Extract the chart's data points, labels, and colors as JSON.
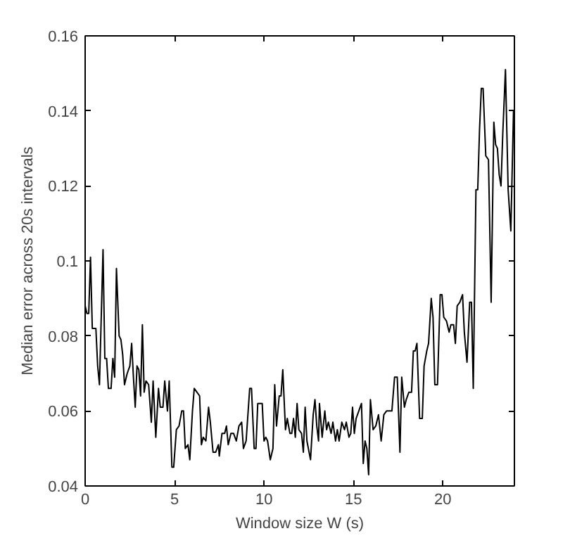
{
  "chart_data": {
    "type": "line",
    "xlabel": "Window size W (s)",
    "ylabel": "Median error across 20s intervals",
    "xlim": [
      0,
      24
    ],
    "ylim": [
      0.04,
      0.16
    ],
    "xticks": [
      0,
      5,
      10,
      15,
      20
    ],
    "yticks": [
      {
        "value": 0.04,
        "label": "0.04"
      },
      {
        "value": 0.06,
        "label": "0.06"
      },
      {
        "value": 0.08,
        "label": "0.08"
      },
      {
        "value": 0.1,
        "label": "0.1"
      },
      {
        "value": 0.12,
        "label": "0.12"
      },
      {
        "value": 0.14,
        "label": "0.14"
      },
      {
        "value": 0.16,
        "label": "0.16"
      }
    ],
    "grid": false,
    "marker": "none",
    "line_style": "solid",
    "series": [
      {
        "color": "#000000",
        "x": [
          0,
          0.1,
          0.2,
          0.3,
          0.4,
          0.6,
          0.7,
          0.8,
          1.0,
          1.1,
          1.2,
          1.3,
          1.45,
          1.55,
          1.65,
          1.75,
          1.9,
          2.0,
          2.1,
          2.2,
          2.35,
          2.5,
          2.6,
          2.7,
          2.8,
          2.9,
          3.0,
          3.1,
          3.2,
          3.3,
          3.4,
          3.55,
          3.7,
          3.8,
          3.95,
          4.1,
          4.2,
          4.35,
          4.45,
          4.6,
          4.7,
          4.85,
          4.95,
          5.1,
          5.25,
          5.4,
          5.5,
          5.6,
          5.75,
          5.85,
          6.0,
          6.1,
          6.25,
          6.4,
          6.5,
          6.6,
          6.75,
          6.9,
          7.0,
          7.15,
          7.3,
          7.45,
          7.5,
          7.65,
          7.8,
          7.9,
          8.0,
          8.15,
          8.3,
          8.45,
          8.6,
          8.75,
          8.85,
          9.0,
          9.2,
          9.3,
          9.45,
          9.55,
          9.65,
          9.9,
          10.0,
          10.1,
          10.2,
          10.35,
          10.5,
          10.6,
          10.7,
          10.85,
          10.95,
          11.05,
          11.2,
          11.3,
          11.45,
          11.55,
          11.65,
          11.75,
          11.85,
          11.95,
          12.1,
          12.2,
          12.3,
          12.4,
          12.6,
          12.75,
          12.85,
          12.95,
          13.05,
          13.1,
          13.25,
          13.4,
          13.5,
          13.6,
          13.75,
          13.85,
          14.0,
          14.1,
          14.2,
          14.35,
          14.5,
          14.6,
          14.75,
          14.85,
          14.95,
          15.05,
          15.15,
          15.3,
          15.45,
          15.55,
          15.65,
          15.75,
          15.85,
          15.95,
          16.1,
          16.25,
          16.4,
          16.55,
          16.7,
          16.85,
          17.0,
          17.15,
          17.3,
          17.45,
          17.6,
          17.7,
          17.85,
          17.95,
          18.1,
          18.25,
          18.35,
          18.45,
          18.55,
          18.7,
          18.85,
          18.95,
          19.1,
          19.2,
          19.35,
          19.45,
          19.55,
          19.7,
          19.85,
          19.95,
          20.05,
          20.2,
          20.35,
          20.45,
          20.6,
          20.7,
          20.8,
          20.95,
          21.1,
          21.2,
          21.35,
          21.5,
          21.6,
          21.7,
          21.85,
          21.95,
          22.05,
          22.15,
          22.25,
          22.4,
          22.55,
          22.7,
          22.85,
          22.95,
          23.05,
          23.15,
          23.25,
          23.35,
          23.5,
          23.65,
          23.8,
          23.95
        ],
        "values": [
          0.088,
          0.086,
          0.086,
          0.101,
          0.082,
          0.082,
          0.072,
          0.067,
          0.103,
          0.074,
          0.074,
          0.066,
          0.066,
          0.074,
          0.069,
          0.098,
          0.08,
          0.079,
          0.075,
          0.067,
          0.07,
          0.072,
          0.078,
          0.069,
          0.061,
          0.072,
          0.071,
          0.064,
          0.083,
          0.065,
          0.068,
          0.067,
          0.057,
          0.068,
          0.053,
          0.066,
          0.061,
          0.061,
          0.068,
          0.06,
          0.068,
          0.045,
          0.045,
          0.055,
          0.056,
          0.06,
          0.06,
          0.05,
          0.051,
          0.047,
          0.06,
          0.066,
          0.065,
          0.064,
          0.051,
          0.053,
          0.052,
          0.061,
          0.057,
          0.049,
          0.049,
          0.051,
          0.048,
          0.054,
          0.054,
          0.056,
          0.051,
          0.054,
          0.054,
          0.052,
          0.056,
          0.057,
          0.05,
          0.052,
          0.066,
          0.066,
          0.05,
          0.05,
          0.062,
          0.062,
          0.052,
          0.053,
          0.052,
          0.047,
          0.05,
          0.067,
          0.056,
          0.064,
          0.064,
          0.071,
          0.055,
          0.058,
          0.054,
          0.054,
          0.058,
          0.053,
          0.062,
          0.055,
          0.054,
          0.049,
          0.061,
          0.052,
          0.047,
          0.059,
          0.063,
          0.056,
          0.052,
          0.062,
          0.053,
          0.06,
          0.055,
          0.057,
          0.054,
          0.057,
          0.052,
          0.055,
          0.052,
          0.057,
          0.055,
          0.057,
          0.053,
          0.054,
          0.061,
          0.054,
          0.058,
          0.06,
          0.062,
          0.046,
          0.052,
          0.05,
          0.043,
          0.063,
          0.055,
          0.056,
          0.059,
          0.052,
          0.059,
          0.06,
          0.06,
          0.06,
          0.069,
          0.069,
          0.049,
          0.069,
          0.061,
          0.063,
          0.065,
          0.065,
          0.076,
          0.076,
          0.078,
          0.058,
          0.058,
          0.072,
          0.076,
          0.078,
          0.09,
          0.085,
          0.067,
          0.067,
          0.091,
          0.091,
          0.085,
          0.084,
          0.081,
          0.083,
          0.083,
          0.078,
          0.088,
          0.089,
          0.091,
          0.081,
          0.073,
          0.089,
          0.089,
          0.066,
          0.119,
          0.119,
          0.135,
          0.146,
          0.146,
          0.128,
          0.127,
          0.089,
          0.137,
          0.131,
          0.13,
          0.123,
          0.12,
          0.134,
          0.151,
          0.119,
          0.108,
          0.14
        ]
      }
    ]
  }
}
